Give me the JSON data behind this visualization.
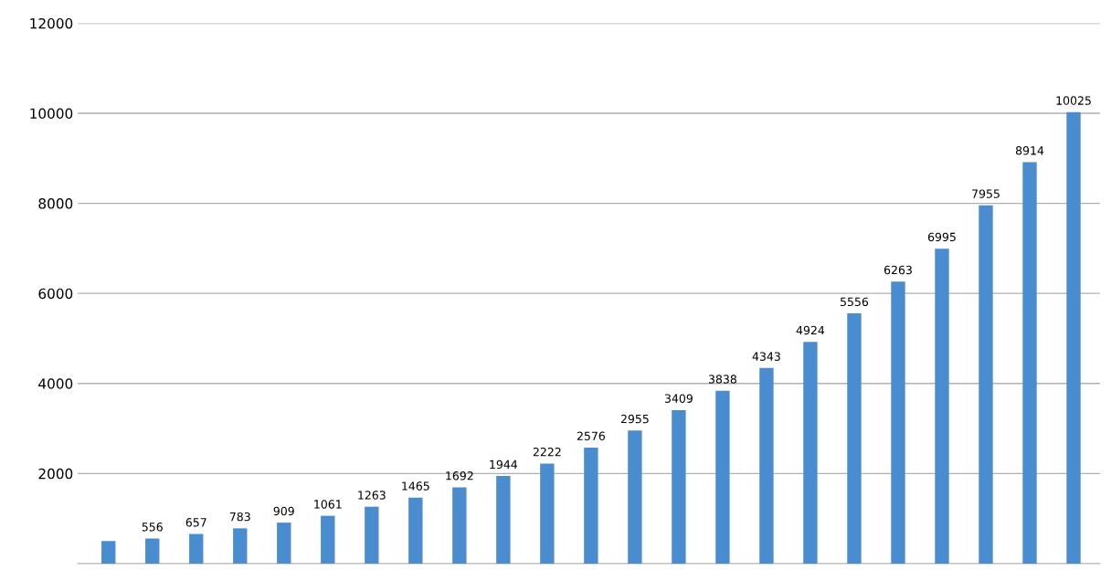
{
  "chart_data": {
    "type": "bar",
    "categories": [
      null,
      null,
      null,
      null,
      null,
      null,
      null,
      null,
      null,
      null,
      null,
      null,
      null,
      null,
      null,
      null,
      null,
      null,
      null,
      null,
      null,
      null,
      null
    ],
    "values": [
      500,
      556,
      657,
      783,
      909,
      1061,
      1263,
      1465,
      1692,
      1944,
      2222,
      2576,
      2955,
      3409,
      3838,
      4343,
      4924,
      5556,
      6263,
      6995,
      7955,
      8914,
      10025
    ],
    "value_labels": [
      null,
      "556",
      "657",
      "783",
      "909",
      "1061",
      "1263",
      "1465",
      "1692",
      "1944",
      "2222",
      "2576",
      "2955",
      "3409",
      "3838",
      "4343",
      "4924",
      "5556",
      "6263",
      "6995",
      "7955",
      "8914",
      "10025"
    ],
    "color": "#4a8cd0",
    "ylim": [
      0,
      12000
    ],
    "yticks": [
      2000,
      4000,
      6000,
      8000,
      10000,
      12000
    ],
    "grid": "y"
  }
}
